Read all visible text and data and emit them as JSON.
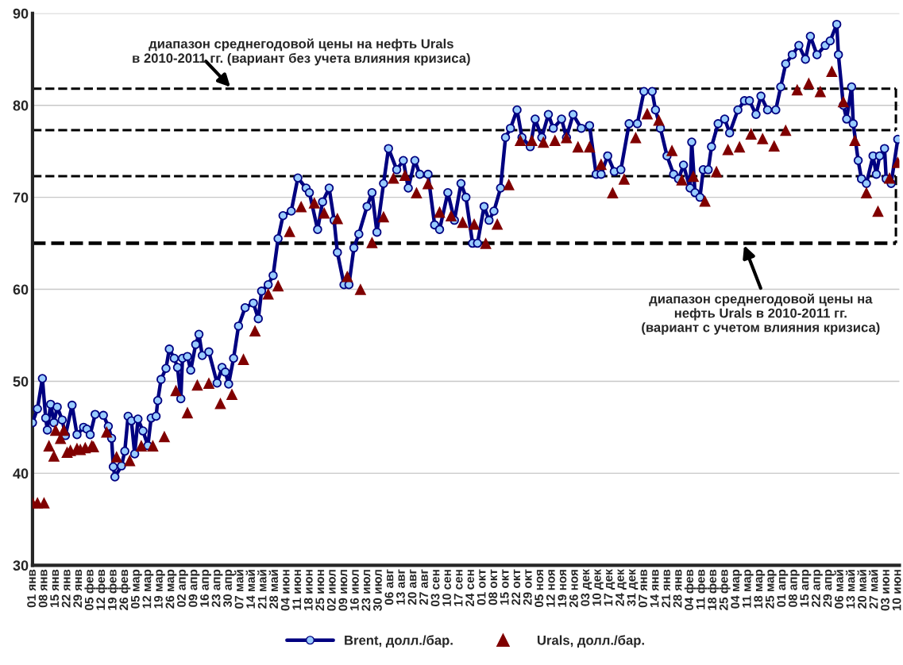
{
  "chart_data": {
    "type": "line",
    "xlim": [
      "2009-01-01",
      "2010-06-11"
    ],
    "xticks": [
      {
        "value": "2009-01-01",
        "label": "01 янв"
      },
      {
        "value": "2009-01-08",
        "label": "08 янв"
      },
      {
        "value": "2009-01-15",
        "label": "15 янв"
      },
      {
        "value": "2009-01-22",
        "label": "22 янв"
      },
      {
        "value": "2009-01-29",
        "label": "29 янв"
      },
      {
        "value": "2009-02-05",
        "label": "05 фев"
      },
      {
        "value": "2009-02-12",
        "label": "12 фев"
      },
      {
        "value": "2009-02-19",
        "label": "19 фев"
      },
      {
        "value": "2009-02-26",
        "label": "26 фев"
      },
      {
        "value": "2009-03-05",
        "label": "05 мар"
      },
      {
        "value": "2009-03-12",
        "label": "12 мар"
      },
      {
        "value": "2009-03-19",
        "label": "19 мар"
      },
      {
        "value": "2009-03-26",
        "label": "26 мар"
      },
      {
        "value": "2009-04-02",
        "label": "02 апр"
      },
      {
        "value": "2009-04-09",
        "label": "09 апр"
      },
      {
        "value": "2009-04-16",
        "label": "16 апр"
      },
      {
        "value": "2009-04-23",
        "label": "23 апр"
      },
      {
        "value": "2009-04-30",
        "label": "30 апр"
      },
      {
        "value": "2009-05-07",
        "label": "07 май"
      },
      {
        "value": "2009-05-14",
        "label": "14 май"
      },
      {
        "value": "2009-05-21",
        "label": "21 май"
      },
      {
        "value": "2009-05-28",
        "label": "28 май"
      },
      {
        "value": "2009-06-04",
        "label": "04 июн"
      },
      {
        "value": "2009-06-11",
        "label": "11 июн"
      },
      {
        "value": "2009-06-18",
        "label": "18 июн"
      },
      {
        "value": "2009-06-25",
        "label": "25 июн"
      },
      {
        "value": "2009-07-02",
        "label": "02 июл"
      },
      {
        "value": "2009-07-09",
        "label": "09 июл"
      },
      {
        "value": "2009-07-16",
        "label": "16 июл"
      },
      {
        "value": "2009-07-23",
        "label": "23 июл"
      },
      {
        "value": "2009-07-30",
        "label": "30 июл"
      },
      {
        "value": "2009-08-06",
        "label": "06 авг"
      },
      {
        "value": "2009-08-13",
        "label": "13 авг"
      },
      {
        "value": "2009-08-20",
        "label": "20 авг"
      },
      {
        "value": "2009-08-27",
        "label": "27 авг"
      },
      {
        "value": "2009-09-03",
        "label": "03 сен"
      },
      {
        "value": "2009-09-10",
        "label": "10 сен"
      },
      {
        "value": "2009-09-17",
        "label": "17 сен"
      },
      {
        "value": "2009-09-24",
        "label": "24 сен"
      },
      {
        "value": "2009-10-01",
        "label": "01 окт"
      },
      {
        "value": "2009-10-08",
        "label": "08 окт"
      },
      {
        "value": "2009-10-15",
        "label": "15 окт"
      },
      {
        "value": "2009-10-22",
        "label": "22 окт"
      },
      {
        "value": "2009-10-29",
        "label": "29 окт"
      },
      {
        "value": "2009-11-05",
        "label": "05 ноя"
      },
      {
        "value": "2009-11-12",
        "label": "12 ноя"
      },
      {
        "value": "2009-11-19",
        "label": "19 ноя"
      },
      {
        "value": "2009-11-26",
        "label": "26 ноя"
      },
      {
        "value": "2009-12-03",
        "label": "03 дек"
      },
      {
        "value": "2009-12-10",
        "label": "10 дек"
      },
      {
        "value": "2009-12-17",
        "label": "17 дек"
      },
      {
        "value": "2009-12-24",
        "label": "24 дек"
      },
      {
        "value": "2009-12-31",
        "label": "31 дек"
      },
      {
        "value": "2010-01-07",
        "label": "07 янв"
      },
      {
        "value": "2010-01-14",
        "label": "14 янв"
      },
      {
        "value": "2010-01-21",
        "label": "21 янв"
      },
      {
        "value": "2010-01-28",
        "label": "28 янв"
      },
      {
        "value": "2010-02-04",
        "label": "04 фев"
      },
      {
        "value": "2010-02-11",
        "label": "11 фев"
      },
      {
        "value": "2010-02-18",
        "label": "18 фев"
      },
      {
        "value": "2010-02-25",
        "label": "25 фев"
      },
      {
        "value": "2010-03-04",
        "label": "04 мар"
      },
      {
        "value": "2010-03-11",
        "label": "11 мар"
      },
      {
        "value": "2010-03-18",
        "label": "18 мар"
      },
      {
        "value": "2010-03-25",
        "label": "25 мар"
      },
      {
        "value": "2010-04-01",
        "label": "01 апр"
      },
      {
        "value": "2010-04-08",
        "label": "08 апр"
      },
      {
        "value": "2010-04-15",
        "label": "15 апр"
      },
      {
        "value": "2010-04-22",
        "label": "22 апр"
      },
      {
        "value": "2010-04-29",
        "label": "29 апр"
      },
      {
        "value": "2010-05-06",
        "label": "06 май"
      },
      {
        "value": "2010-05-13",
        "label": "13 май"
      },
      {
        "value": "2010-05-20",
        "label": "20 май"
      },
      {
        "value": "2010-05-27",
        "label": "27 май"
      },
      {
        "value": "2010-06-03",
        "label": "03 июн"
      },
      {
        "value": "2010-06-10",
        "label": "10 июн"
      }
    ],
    "ylim": [
      30,
      90
    ],
    "yticks": [
      30,
      40,
      50,
      60,
      70,
      80,
      90
    ],
    "grid": "y",
    "legend": "bottom",
    "ref_lines": [
      {
        "axis": "y",
        "value": 81.8,
        "label": "диапазон среднегодовой цены на нефть Urals\nв 2010-2011 гг. (вариант без учета влияния кризиса)",
        "color": "#000000",
        "line_style": "dashed"
      },
      {
        "axis": "y",
        "value": 77.3,
        "color": "#000000",
        "line_style": "dashed"
      },
      {
        "axis": "y",
        "value": 72.3,
        "color": "#000000",
        "line_style": "dashed"
      },
      {
        "axis": "y",
        "value": 65,
        "label": "диапазон среднегодовой цены на\nнефть Urals в 2010-2011 гг.\n(вариант с учетом влияния кризиса)",
        "color": "#000000",
        "line_style": "dashed"
      }
    ],
    "series": [
      {
        "name": "Brent, долл./бар.",
        "color": "#000080",
        "marker": "circle",
        "line_style": "solid",
        "x": [
          "2009-01-01",
          "2009-01-04",
          "2009-01-07",
          "2009-01-09",
          "2009-01-10",
          "2009-01-12",
          "2009-01-14",
          "2009-01-16",
          "2009-01-19",
          "2009-01-21",
          "2009-01-25",
          "2009-01-28",
          "2009-02-01",
          "2009-02-03",
          "2009-02-05",
          "2009-02-08",
          "2009-02-13",
          "2009-02-16",
          "2009-02-18",
          "2009-02-19",
          "2009-02-20",
          "2009-02-24",
          "2009-02-26",
          "2009-02-28",
          "2009-03-02",
          "2009-03-04",
          "2009-03-06",
          "2009-03-09",
          "2009-03-12",
          "2009-03-14",
          "2009-03-17",
          "2009-03-18",
          "2009-03-20",
          "2009-03-23",
          "2009-03-25",
          "2009-03-28",
          "2009-03-30",
          "2009-04-01",
          "2009-04-02",
          "2009-04-05",
          "2009-04-07",
          "2009-04-10",
          "2009-04-12",
          "2009-04-14",
          "2009-04-18",
          "2009-04-23",
          "2009-04-26",
          "2009-04-28",
          "2009-04-30",
          "2009-05-03",
          "2009-05-06",
          "2009-05-10",
          "2009-05-15",
          "2009-05-18",
          "2009-05-20",
          "2009-05-24",
          "2009-05-27",
          "2009-05-30",
          "2009-06-02",
          "2009-06-07",
          "2009-06-11",
          "2009-06-16",
          "2009-06-18",
          "2009-06-23",
          "2009-06-26",
          "2009-06-30",
          "2009-07-03",
          "2009-07-05",
          "2009-07-09",
          "2009-07-12",
          "2009-07-15",
          "2009-07-18",
          "2009-07-23",
          "2009-07-26",
          "2009-07-29",
          "2009-08-02",
          "2009-08-05",
          "2009-08-10",
          "2009-08-14",
          "2009-08-17",
          "2009-08-21",
          "2009-08-24",
          "2009-08-29",
          "2009-09-02",
          "2009-09-05",
          "2009-09-10",
          "2009-09-14",
          "2009-09-18",
          "2009-09-21",
          "2009-09-25",
          "2009-09-28",
          "2009-10-02",
          "2009-10-05",
          "2009-10-08",
          "2009-10-12",
          "2009-10-15",
          "2009-10-18",
          "2009-10-22",
          "2009-10-25",
          "2009-10-30",
          "2009-11-02",
          "2009-11-06",
          "2009-11-10",
          "2009-11-13",
          "2009-11-18",
          "2009-11-21",
          "2009-11-25",
          "2009-11-30",
          "2009-12-05",
          "2009-12-09",
          "2009-12-12",
          "2009-12-16",
          "2009-12-20",
          "2009-12-24",
          "2009-12-29",
          "2010-01-03",
          "2010-01-07",
          "2010-01-12",
          "2010-01-14",
          "2010-01-17",
          "2010-01-21",
          "2010-01-25",
          "2010-01-28",
          "2010-01-31",
          "2010-02-04",
          "2010-02-05",
          "2010-02-07",
          "2010-02-10",
          "2010-02-12",
          "2010-02-15",
          "2010-02-17",
          "2010-02-21",
          "2010-02-25",
          "2010-02-28",
          "2010-03-05",
          "2010-03-09",
          "2010-03-12",
          "2010-03-16",
          "2010-03-19",
          "2010-03-23",
          "2010-03-28",
          "2010-03-31",
          "2010-04-03",
          "2010-04-07",
          "2010-04-11",
          "2010-04-15",
          "2010-04-18",
          "2010-04-22",
          "2010-04-27",
          "2010-04-30",
          "2010-05-04",
          "2010-05-05",
          "2010-05-08",
          "2010-05-10",
          "2010-05-13",
          "2010-05-14",
          "2010-05-17",
          "2010-05-19",
          "2010-05-22",
          "2010-05-26",
          "2010-05-28",
          "2010-05-30",
          "2010-06-02",
          "2010-06-03",
          "2010-06-06",
          "2010-06-10"
        ],
        "values": [
          45.5,
          47,
          50.3,
          46,
          44.7,
          47.5,
          45.5,
          47.2,
          45.8,
          44.1,
          47.4,
          44.2,
          45,
          44.8,
          44.2,
          46.4,
          46.3,
          45.1,
          43.8,
          40.7,
          39.6,
          40.8,
          42.4,
          46.2,
          45.7,
          42.1,
          45.9,
          44.6,
          43,
          46,
          46.2,
          47.9,
          50.2,
          51.4,
          53.5,
          52.5,
          51.5,
          48.1,
          52.5,
          52.7,
          51.2,
          54,
          55.1,
          52.8,
          53.2,
          49.8,
          51.5,
          51,
          49.7,
          52.5,
          56,
          58,
          58.5,
          56.8,
          59.8,
          60.5,
          61.5,
          65.5,
          68,
          68.5,
          72.1,
          71,
          70.5,
          66.5,
          69.5,
          71,
          67.5,
          64,
          60.5,
          60.5,
          64.5,
          66,
          69,
          70.5,
          66.2,
          71.5,
          75.3,
          73,
          74,
          71,
          74,
          72.5,
          72.5,
          67,
          66.5,
          70.5,
          67.5,
          71.5,
          70,
          65,
          65,
          69,
          67.5,
          68.5,
          71,
          76.5,
          77.5,
          79.5,
          76.5,
          75.5,
          78.5,
          76.5,
          79,
          77.5,
          78.5,
          76.5,
          79,
          77.5,
          77.8,
          72.5,
          72.5,
          74.5,
          72.8,
          73,
          78,
          78,
          81.5,
          81.5,
          79.5,
          77.5,
          74.5,
          72.5,
          72,
          73.5,
          71,
          76,
          70.5,
          70,
          73,
          73,
          75.5,
          78,
          78.5,
          77,
          79.5,
          80.5,
          80.5,
          79,
          81,
          79.5,
          79.5,
          82,
          84.5,
          85.5,
          86.5,
          85,
          87.5,
          85.5,
          86.5,
          87,
          88.8,
          85.5,
          80,
          78.5,
          82,
          78,
          74,
          72,
          71.5,
          74.5,
          72.5,
          74.5,
          75.3,
          72,
          71.5,
          76.3
        ]
      },
      {
        "name": "Urals, долл./бар.",
        "type": "scatter",
        "color": "#800000",
        "marker": "triangle",
        "x": [
          "2009-01-01",
          "2009-01-04",
          "2009-01-08",
          "2009-01-11",
          "2009-01-14",
          "2009-01-15",
          "2009-01-18",
          "2009-01-20",
          "2009-01-22",
          "2009-01-24",
          "2009-01-28",
          "2009-01-30",
          "2009-02-02",
          "2009-02-06",
          "2009-02-07",
          "2009-02-15",
          "2009-02-21",
          "2009-03-01",
          "2009-03-08",
          "2009-03-15",
          "2009-03-22",
          "2009-03-29",
          "2009-04-05",
          "2009-04-11",
          "2009-04-18",
          "2009-04-25",
          "2009-05-02",
          "2009-05-09",
          "2009-05-16",
          "2009-05-24",
          "2009-05-30",
          "2009-06-06",
          "2009-06-13",
          "2009-06-21",
          "2009-06-27",
          "2009-07-05",
          "2009-07-11",
          "2009-07-19",
          "2009-07-26",
          "2009-08-02",
          "2009-08-08",
          "2009-08-15",
          "2009-08-22",
          "2009-08-29",
          "2009-09-05",
          "2009-09-12",
          "2009-09-19",
          "2009-09-26",
          "2009-10-03",
          "2009-10-10",
          "2009-10-17",
          "2009-10-24",
          "2009-10-31",
          "2009-11-07",
          "2009-11-14",
          "2009-11-21",
          "2009-11-28",
          "2009-12-05",
          "2009-12-12",
          "2009-12-19",
          "2009-12-26",
          "2010-01-02",
          "2010-01-09",
          "2010-01-16",
          "2010-01-24",
          "2010-01-30",
          "2010-02-06",
          "2010-02-13",
          "2010-02-20",
          "2010-02-27",
          "2010-03-06",
          "2010-03-13",
          "2010-03-20",
          "2010-03-27",
          "2010-04-03",
          "2010-04-10",
          "2010-04-17",
          "2010-04-24",
          "2010-05-01",
          "2010-05-08",
          "2010-05-15",
          "2010-05-22",
          "2010-05-29",
          "2010-06-05",
          "2010-06-10"
        ],
        "values": [
          36.8,
          36.8,
          36.8,
          43,
          41.9,
          44.7,
          43.8,
          44.7,
          42.3,
          42.5,
          42.7,
          42.6,
          42.8,
          43,
          42.9,
          44.5,
          41.8,
          41.4,
          43,
          43,
          44,
          49,
          46.6,
          49.6,
          49.8,
          47.6,
          48.6,
          52.4,
          55.5,
          59.5,
          60.4,
          66.3,
          69,
          69.4,
          68.3,
          67.7,
          61.4,
          60,
          65.1,
          67.9,
          72.1,
          72.4,
          70.5,
          71.5,
          68.4,
          68,
          67.3,
          67.1,
          65,
          67.1,
          71.4,
          76.2,
          76.2,
          76,
          76.2,
          76.5,
          75.5,
          75.5,
          73.6,
          70.5,
          72,
          76.5,
          79.1,
          78.4,
          75.1,
          71.9,
          72.3,
          69.6,
          72.8,
          75.2,
          75.5,
          76.9,
          76.4,
          75.6,
          77.3,
          81.7,
          82.4,
          81.5,
          83.7,
          80.4,
          76.2,
          70.5,
          68.5,
          72.1,
          73.8
        ]
      }
    ]
  }
}
